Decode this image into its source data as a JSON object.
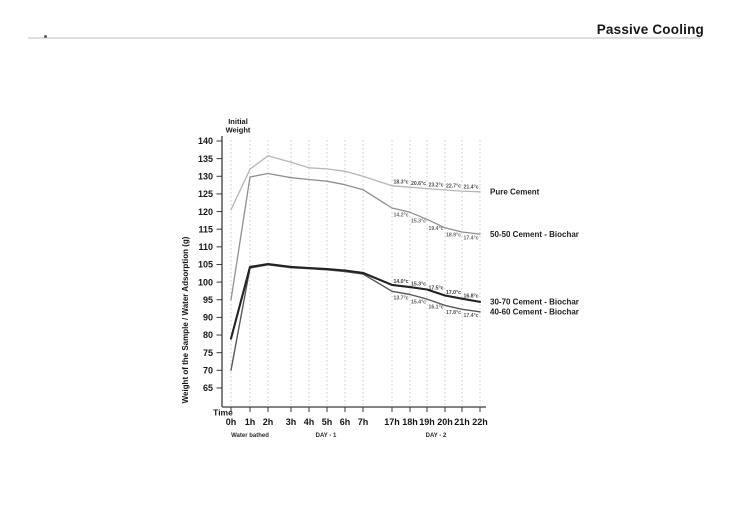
{
  "header": {
    "title": "Passive Cooling"
  },
  "chart_data": {
    "type": "line",
    "title": "",
    "xlabel": "Time",
    "ylabel": "Weight of the Sample / Water Adsorption (g)",
    "initial_weight_annotation": "Initial Weight",
    "categories": [
      "0h",
      "1h",
      "2h",
      "3h",
      "4h",
      "5h",
      "6h",
      "7h",
      "17h",
      "18h",
      "19h",
      "20h",
      "21h",
      "22h"
    ],
    "y_tick_labels": [
      "140",
      "135",
      "130",
      "125",
      "120",
      "115",
      "110",
      "105",
      "100",
      "95",
      "90",
      "80",
      "75",
      "70",
      "65"
    ],
    "x_group_labels": [
      "Water bathed",
      "DAY - 1",
      "DAY - 2"
    ],
    "grid": "vertical-dashed",
    "legend_position": "right-of-line-ends",
    "series": [
      {
        "name": "Pure Cement",
        "color": "#b6b6b6",
        "temp_color": "#4a4a4a",
        "temps_position": "above",
        "values": [
          120.5,
          132,
          135.8,
          134,
          132.4,
          132.1,
          131.4,
          130,
          127.3,
          126.9,
          126.5,
          126.1,
          125.8,
          125.6
        ],
        "temps": [
          "18.3°c",
          "20.6°c",
          "23.2°c",
          "22.7°c",
          "21.4°c"
        ]
      },
      {
        "name": "50-50 Cement - Biochar",
        "color": "#8f8f8f",
        "temp_color": "#6b6b6b",
        "temps_position": "below",
        "values": [
          95,
          129.8,
          130.8,
          129.6,
          129.1,
          128.6,
          127.6,
          126.2,
          121,
          119.8,
          117.8,
          115.4,
          114.2,
          113.6
        ],
        "temps": [
          "14.2°c",
          "15.3°c",
          "19.4°c",
          "18.9°c",
          "17.4°c"
        ]
      },
      {
        "name": "30-70 Cement - Biochar",
        "color": "#222222",
        "temp_color": "#3c3c3c",
        "temps_position": "above",
        "values": [
          79,
          104.3,
          105.1,
          104.3,
          104,
          103.7,
          103.3,
          102.6,
          99.2,
          98.6,
          97.9,
          96.2,
          95.3,
          94.4
        ],
        "temps": [
          "14.0°c",
          "15.3°c",
          "17.5°c",
          "17.0°c",
          "16.8°c"
        ]
      },
      {
        "name": "40-60 Cement - Biochar",
        "color": "#585858",
        "temp_color": "#5a5a5a",
        "temps_position": "below",
        "values": [
          70,
          104,
          104.9,
          104.1,
          103.8,
          103.5,
          103,
          102.3,
          97.4,
          96.5,
          95.2,
          93.4,
          92.3,
          91.6
        ],
        "temps": [
          "13.7°c",
          "15.4°c",
          "16.1°c",
          "17.8°c",
          "17.4°c"
        ]
      }
    ]
  }
}
